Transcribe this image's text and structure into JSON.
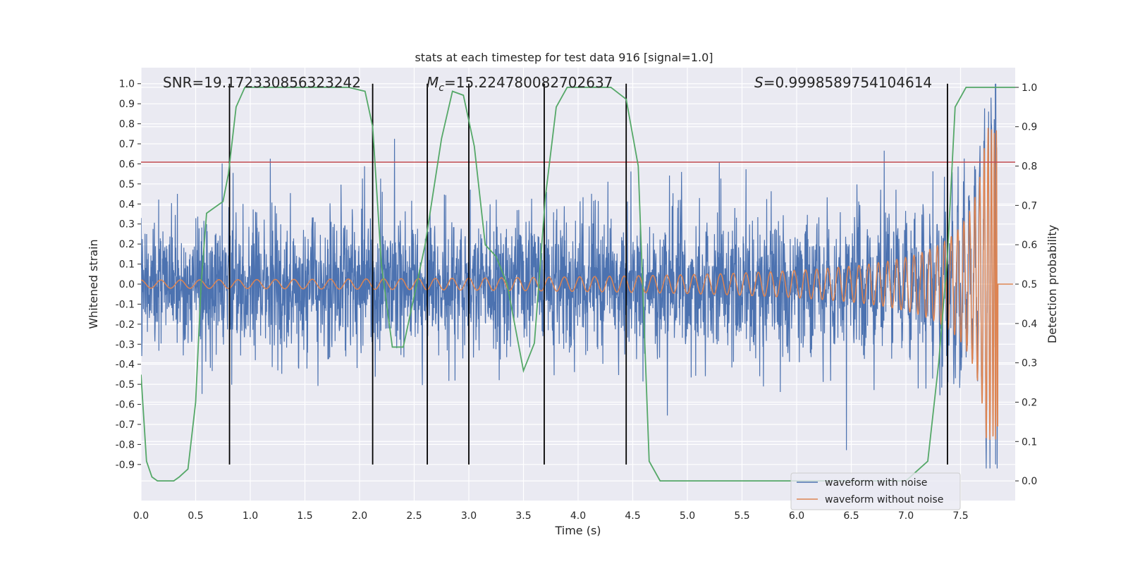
{
  "chart_data": {
    "type": "line",
    "title": "stats at each timestep for test data 916 [signal=1.0]",
    "xlabel": "Time (s)",
    "ylabel": "Whitened strain",
    "y2label": "Detection probability",
    "xlim": [
      0.0,
      8.0
    ],
    "ylim": [
      -1.08,
      1.08
    ],
    "y2lim": [
      -0.05,
      1.05
    ],
    "xticks": [
      "0.0",
      "0.5",
      "1.0",
      "1.5",
      "2.0",
      "2.5",
      "3.0",
      "3.5",
      "4.0",
      "4.5",
      "5.0",
      "5.5",
      "6.0",
      "6.5",
      "7.0",
      "7.5"
    ],
    "yticks": [
      "1.0",
      "0.9",
      "0.8",
      "0.7",
      "0.6",
      "0.5",
      "0.4",
      "0.3",
      "0.2",
      "0.1",
      "0.0",
      "-0.1",
      "-0.2",
      "-0.3",
      "-0.4",
      "-0.5",
      "-0.6",
      "-0.7",
      "-0.8",
      "-0.9"
    ],
    "y2ticks": [
      "1.0",
      "0.9",
      "0.8",
      "0.7",
      "0.6",
      "0.5",
      "0.4",
      "0.3",
      "0.2",
      "0.1",
      "0.0"
    ],
    "grid": true,
    "legend_placement": "lower-right",
    "annotations": {
      "snr": "SNR=19.172330856323242",
      "mc_symbol": "M",
      "mc_sub": "c",
      "mc_value": "=15.224780082702637",
      "s_symbol": "S",
      "s_value": "=0.9998589754104614"
    },
    "threshold": {
      "value": 0.81,
      "color": "#c44e52"
    },
    "vertical_lines": {
      "x": [
        0.81,
        2.12,
        2.62,
        3.0,
        3.69,
        4.44,
        7.38
      ],
      "y_range": [
        -0.9,
        1.0
      ],
      "color": "#000000"
    },
    "series": [
      {
        "name": "waveform with noise",
        "color": "#4c72b0",
        "axis": "left",
        "description_envelope": {
          "x_end": 7.84,
          "spike_at": 7.82
        }
      },
      {
        "name": "waveform without noise",
        "color": "#dd8452",
        "axis": "left",
        "chirp": {
          "start_amp": 0.02,
          "end_time": 7.84,
          "peak_amp": 0.78
        }
      },
      {
        "name": "detection probability",
        "color": "#55a868",
        "axis": "right",
        "x": [
          0.0,
          0.05,
          0.1,
          0.15,
          0.2,
          0.3,
          0.35,
          0.43,
          0.5,
          0.55,
          0.6,
          0.65,
          0.75,
          0.8,
          0.87,
          0.95,
          1.0,
          1.5,
          1.9,
          2.05,
          2.12,
          2.2,
          2.3,
          2.4,
          2.6,
          2.75,
          2.85,
          2.95,
          3.05,
          3.15,
          3.25,
          3.35,
          3.5,
          3.6,
          3.7,
          3.8,
          3.9,
          4.0,
          4.3,
          4.44,
          4.55,
          4.65,
          4.75,
          5.0,
          6.0,
          6.6,
          7.0,
          7.2,
          7.3,
          7.38,
          7.45,
          7.55,
          8.0
        ],
        "y": [
          0.27,
          0.05,
          0.01,
          0.0,
          0.0,
          0.0,
          0.01,
          0.03,
          0.2,
          0.5,
          0.68,
          0.69,
          0.71,
          0.78,
          0.95,
          1.0,
          1.0,
          1.0,
          1.0,
          0.99,
          0.9,
          0.55,
          0.34,
          0.34,
          0.6,
          0.87,
          0.99,
          0.98,
          0.85,
          0.6,
          0.57,
          0.5,
          0.28,
          0.35,
          0.72,
          0.95,
          1.0,
          1.0,
          1.0,
          0.97,
          0.8,
          0.05,
          0.0,
          0.0,
          0.0,
          0.0,
          0.0,
          0.05,
          0.3,
          0.57,
          0.95,
          1.0,
          1.0
        ]
      }
    ]
  }
}
